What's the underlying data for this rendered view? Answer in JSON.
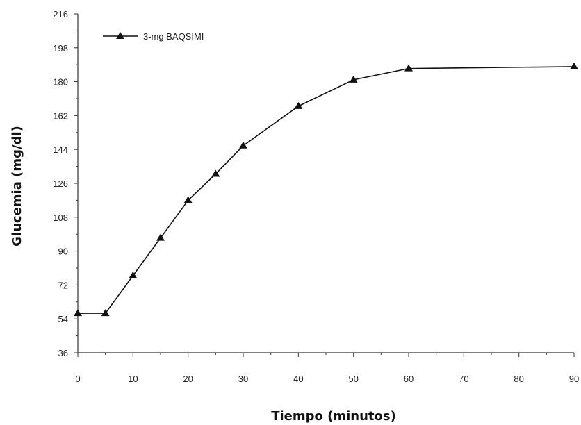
{
  "chart_data": {
    "type": "line",
    "title": "",
    "xlabel": "Tiempo (minutos)",
    "ylabel": "Glucemia (mg/dl)",
    "x_ticks": [
      0,
      10,
      20,
      30,
      40,
      50,
      60,
      70,
      80,
      90
    ],
    "y_ticks": [
      36,
      54,
      72,
      90,
      108,
      126,
      144,
      162,
      180,
      198,
      216
    ],
    "xlim": [
      0,
      90
    ],
    "ylim": [
      36,
      216
    ],
    "grid": false,
    "legend_position": "top-left",
    "series": [
      {
        "name": "3-mg BAQSIMI",
        "marker": "triangle",
        "color": "#111111",
        "x": [
          0,
          5,
          10,
          15,
          20,
          25,
          30,
          40,
          50,
          60,
          90
        ],
        "y": [
          57,
          57,
          77,
          97,
          117,
          131,
          146,
          167,
          181,
          187,
          188
        ]
      }
    ]
  }
}
